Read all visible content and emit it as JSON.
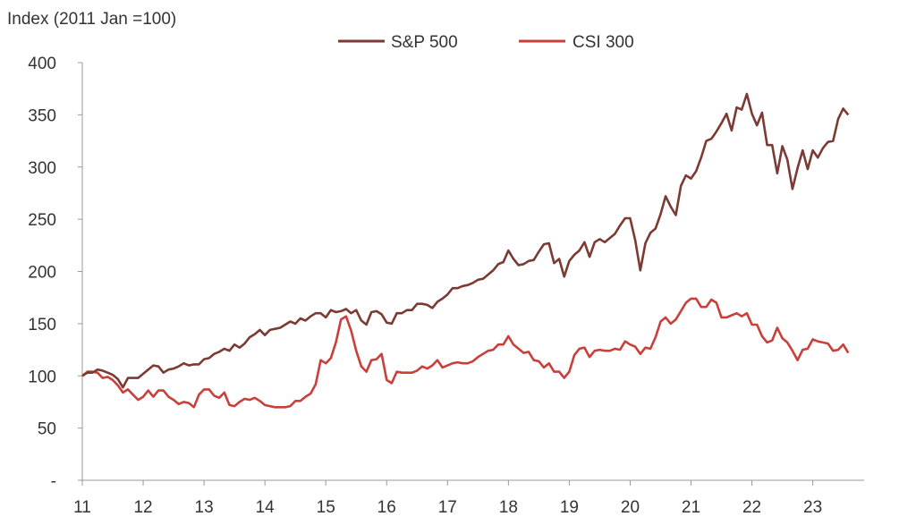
{
  "chart_data": {
    "type": "line",
    "title": "",
    "ylabel": "Index (2011 Jan =100)",
    "xlabel": "",
    "ylim": [
      0,
      400
    ],
    "yticks": [
      0,
      50,
      100,
      150,
      200,
      250,
      300,
      350,
      400
    ],
    "ytick_labels": [
      "-",
      "50",
      "100",
      "150",
      "200",
      "250",
      "300",
      "350",
      "400"
    ],
    "xtick_labels": [
      "11",
      "12",
      "13",
      "14",
      "15",
      "16",
      "17",
      "18",
      "19",
      "20",
      "21",
      "22",
      "23"
    ],
    "x_start": "2011-01",
    "x_frequency": "monthly",
    "grid": false,
    "legend_placement": "top-center",
    "series": [
      {
        "name": "S&P 500",
        "color": "#7b3a33",
        "values": [
          100,
          103,
          103,
          106,
          105,
          103,
          101,
          97,
          89,
          98,
          98,
          98,
          102,
          106,
          110,
          109,
          103,
          106,
          107,
          109,
          112,
          110,
          111,
          111,
          116,
          117,
          121,
          123,
          126,
          124,
          130,
          127,
          131,
          137,
          140,
          144,
          139,
          144,
          145,
          146,
          149,
          152,
          150,
          155,
          153,
          157,
          160,
          160,
          156,
          163,
          161,
          162,
          164,
          160,
          163,
          153,
          149,
          161,
          162,
          159,
          151,
          150,
          160,
          160,
          163,
          163,
          169,
          169,
          168,
          165,
          171,
          174,
          178,
          184,
          184,
          186,
          187,
          189,
          192,
          193,
          197,
          201,
          207,
          209,
          220,
          212,
          206,
          207,
          210,
          211,
          219,
          226,
          227,
          208,
          212,
          195,
          210,
          216,
          220,
          228,
          214,
          228,
          231,
          228,
          232,
          236,
          244,
          251,
          251,
          230,
          201,
          227,
          237,
          241,
          255,
          272,
          262,
          254,
          282,
          292,
          289,
          296,
          309,
          325,
          327,
          334,
          342,
          351,
          335,
          357,
          355,
          370,
          351,
          340,
          352,
          321,
          321,
          294,
          320,
          307,
          279,
          299,
          316,
          298,
          316,
          309,
          318,
          324,
          325,
          346,
          356,
          350
        ]
      },
      {
        "name": "CSI 300",
        "color": "#c93f3a",
        "values": [
          100,
          104,
          104,
          103,
          98,
          99,
          96,
          91,
          84,
          87,
          82,
          77,
          80,
          86,
          80,
          86,
          86,
          80,
          77,
          73,
          75,
          74,
          70,
          82,
          87,
          87,
          81,
          79,
          84,
          72,
          71,
          75,
          78,
          77,
          79,
          76,
          72,
          71,
          70,
          70,
          70,
          71,
          76,
          76,
          80,
          83,
          92,
          115,
          112,
          117,
          132,
          154,
          157,
          143,
          124,
          109,
          104,
          115,
          116,
          121,
          96,
          93,
          104,
          103,
          103,
          103,
          105,
          109,
          107,
          110,
          115,
          108,
          110,
          112,
          113,
          112,
          112,
          114,
          118,
          121,
          124,
          125,
          130,
          130,
          138,
          130,
          126,
          122,
          123,
          115,
          114,
          108,
          112,
          104,
          104,
          98,
          104,
          120,
          126,
          127,
          118,
          124,
          125,
          124,
          124,
          126,
          125,
          133,
          130,
          128,
          121,
          127,
          126,
          137,
          152,
          156,
          150,
          154,
          162,
          170,
          174,
          174,
          166,
          166,
          173,
          170,
          156,
          156,
          158,
          160,
          157,
          160,
          149,
          149,
          138,
          132,
          134,
          146,
          136,
          132,
          124,
          115,
          125,
          126,
          135,
          133,
          132,
          131,
          124,
          125,
          130,
          122
        ]
      }
    ]
  }
}
